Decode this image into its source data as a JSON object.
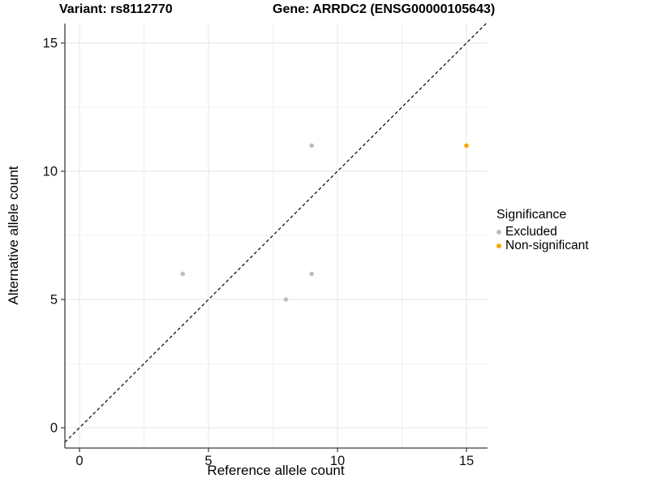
{
  "title": {
    "variant": "Variant: rs8112770",
    "gene": "Gene: ARRDC2 (ENSG00000105643)"
  },
  "axes": {
    "x_label": "Reference allele count",
    "y_label": "Alternative allele count"
  },
  "legend": {
    "title": "Significance",
    "items": [
      {
        "label": "Excluded",
        "color": "#BEBEBE"
      },
      {
        "label": "Non-significant",
        "color": "#FFA500"
      }
    ]
  },
  "chart_data": {
    "type": "scatter",
    "title": "Variant: rs8112770 | Gene: ARRDC2 (ENSG00000105643)",
    "xlabel": "Reference allele count",
    "ylabel": "Alternative allele count",
    "xlim": [
      -0.6,
      15.8
    ],
    "ylim": [
      -0.8,
      15.8
    ],
    "x_ticks": [
      0,
      5,
      10,
      15
    ],
    "y_ticks": [
      0,
      5,
      10,
      15
    ],
    "grid": "major and minor, light gray",
    "legend_position": "right",
    "reference_line": {
      "type": "identity y=x",
      "style": "dashed",
      "color": "#000000"
    },
    "series": [
      {
        "name": "Excluded",
        "color": "#BEBEBE",
        "points": [
          [
            4,
            6
          ],
          [
            8,
            5
          ],
          [
            9,
            6
          ],
          [
            9,
            11
          ]
        ]
      },
      {
        "name": "Non-significant",
        "color": "#FFA500",
        "points": [
          [
            15,
            11
          ]
        ]
      }
    ],
    "colors": {
      "major_grid": "#e4e4e4",
      "minor_grid": "#f0f0f0",
      "axis_line": "#3c3c3c"
    }
  }
}
